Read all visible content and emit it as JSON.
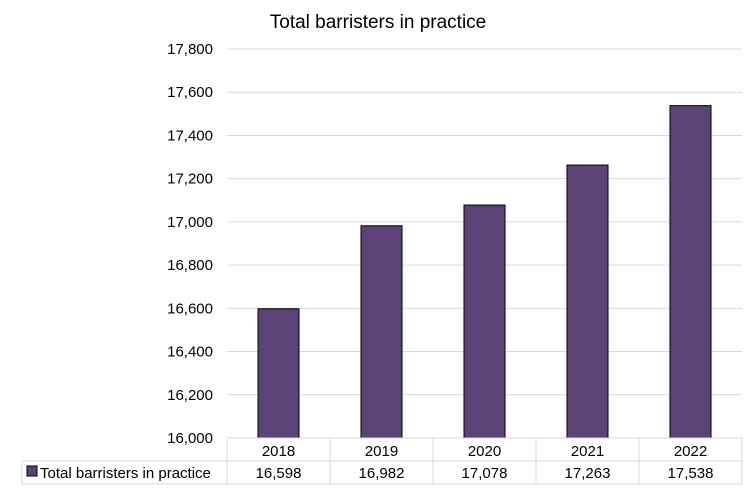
{
  "chart_data": {
    "type": "bar",
    "title": "Total barristers in practice",
    "categories": [
      "2018",
      "2019",
      "2020",
      "2021",
      "2022"
    ],
    "series": [
      {
        "name": "Total barristers in practice",
        "values": [
          16598,
          16982,
          17078,
          17263,
          17538
        ],
        "value_labels": [
          "16,598",
          "16,982",
          "17,078",
          "17,263",
          "17,538"
        ],
        "color": "#5b4378"
      }
    ],
    "ylim": [
      16000,
      17800
    ],
    "y_ticks": [
      16000,
      16200,
      16400,
      16600,
      16800,
      17000,
      17200,
      17400,
      17600,
      17800
    ],
    "y_tick_labels": [
      "16,000",
      "16,200",
      "16,400",
      "16,600",
      "16,800",
      "17,000",
      "17,200",
      "17,400",
      "17,600",
      "17,800"
    ],
    "xlabel": "",
    "ylabel": "",
    "grid": true,
    "legend": "data-table-left",
    "gridline_color": "#d9d9d9",
    "bar_outline_color": "#000000"
  }
}
